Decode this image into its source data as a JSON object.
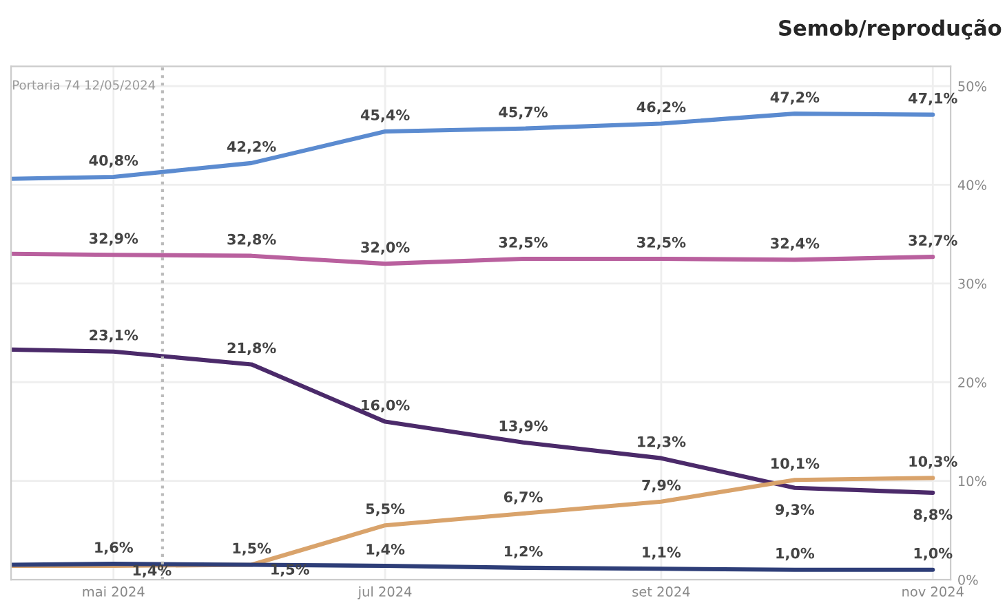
{
  "chart_data": {
    "type": "line",
    "x": [
      "2024-04-08",
      "2024-05-01",
      "2024-06-01",
      "2024-07-01",
      "2024-08-01",
      "2024-09-01",
      "2024-10-01",
      "2024-11-01"
    ],
    "series": [
      {
        "color": "#5b8bd0",
        "values": [
          40.6,
          40.8,
          42.2,
          45.4,
          45.7,
          46.2,
          47.2,
          47.1
        ],
        "value_labels": [
          null,
          "40,8%",
          "42,2%",
          "45,4%",
          "45,7%",
          "46,2%",
          "47,2%",
          "47,1%"
        ]
      },
      {
        "color": "#b9609e",
        "values": [
          33.0,
          32.9,
          32.8,
          32.0,
          32.5,
          32.5,
          32.4,
          32.7
        ],
        "value_labels": [
          null,
          "32,9%",
          "32,8%",
          "32,0%",
          "32,5%",
          "32,5%",
          "32,4%",
          "32,7%"
        ]
      },
      {
        "color": "#4b2a6a",
        "values": [
          23.3,
          23.1,
          21.8,
          16.0,
          13.9,
          12.3,
          9.3,
          8.8
        ],
        "value_labels": [
          null,
          "23,1%",
          "21,8%",
          "16,0%",
          "13,9%",
          "12,3%",
          "9,3%",
          "8,8%"
        ]
      },
      {
        "color": "#d9a36b",
        "values": [
          1.4,
          1.4,
          1.5,
          5.5,
          6.7,
          7.9,
          10.1,
          10.3
        ],
        "value_labels": [
          null,
          "1,4%",
          "1,5%",
          "5,5%",
          "6,7%",
          "7,9%",
          "10,1%",
          "10,3%"
        ]
      },
      {
        "color": "#2e3e78",
        "values": [
          1.5,
          1.6,
          1.5,
          1.4,
          1.2,
          1.1,
          1.0,
          1.0
        ],
        "value_labels": [
          null,
          "1,6%",
          "1,5%",
          "1,4%",
          "1,2%",
          "1,1%",
          "1,0%",
          "1,0%"
        ]
      }
    ],
    "xlim": [
      "2024-04-08",
      "2024-11-05"
    ],
    "xticks": [
      {
        "value": "2024-05-01",
        "label": "mai 2024"
      },
      {
        "value": "2024-07-01",
        "label": "jul 2024"
      },
      {
        "value": "2024-09-01",
        "label": "set 2024"
      },
      {
        "value": "2024-11-01",
        "label": "nov 2024"
      }
    ],
    "ylim": [
      0,
      52
    ],
    "yticks": [
      {
        "value": 0,
        "label": "0%"
      },
      {
        "value": 10,
        "label": "10%"
      },
      {
        "value": 20,
        "label": "20%"
      },
      {
        "value": 30,
        "label": "30%"
      },
      {
        "value": 40,
        "label": "40%"
      },
      {
        "value": 50,
        "label": "50%"
      }
    ],
    "ref_lines": [
      {
        "axis": "x",
        "value": "2024-05-12",
        "label": "Portaria 74 12/05/2024",
        "color": "#bbbbbb",
        "line_style": "dotted"
      }
    ],
    "annotations": [
      "Semob/reprodução"
    ],
    "grid": true,
    "legend": false,
    "marker": "none",
    "line_style": "solid"
  }
}
